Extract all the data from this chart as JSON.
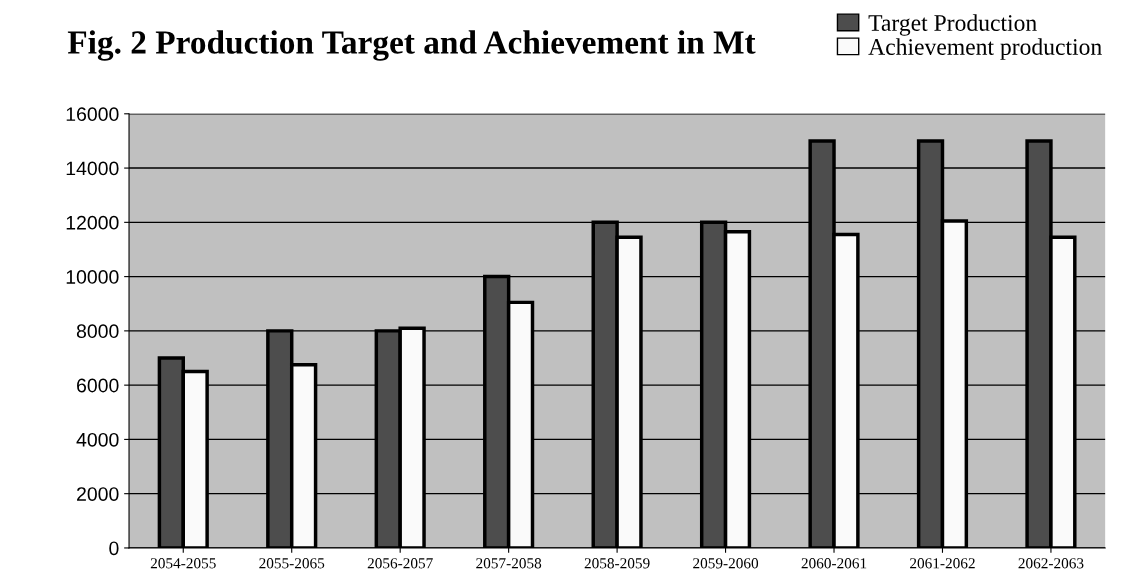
{
  "chart_data": {
    "type": "bar",
    "title": "Fig. 2 Production Target and Achievement in Mt",
    "categories": [
      "2054-2055",
      "2055-2065",
      "2056-2057",
      "2057-2058",
      "2058-2059",
      "2059-2060",
      "2060-2061",
      "2061-2062",
      "2062-2063"
    ],
    "series": [
      {
        "name": "Target Production",
        "color": "#4d4d4d",
        "values": [
          7000,
          8000,
          8000,
          10000,
          12000,
          12000,
          15000,
          15000,
          15000
        ]
      },
      {
        "name": "Achievement production",
        "color": "#fafafa",
        "values": [
          6500,
          6750,
          8100,
          9050,
          11450,
          11650,
          11550,
          12050,
          11450
        ]
      }
    ],
    "ylim": [
      0,
      16000
    ],
    "yticks": [
      0,
      2000,
      4000,
      6000,
      8000,
      10000,
      12000,
      14000,
      16000
    ],
    "grid": "y",
    "legend": "top right"
  }
}
